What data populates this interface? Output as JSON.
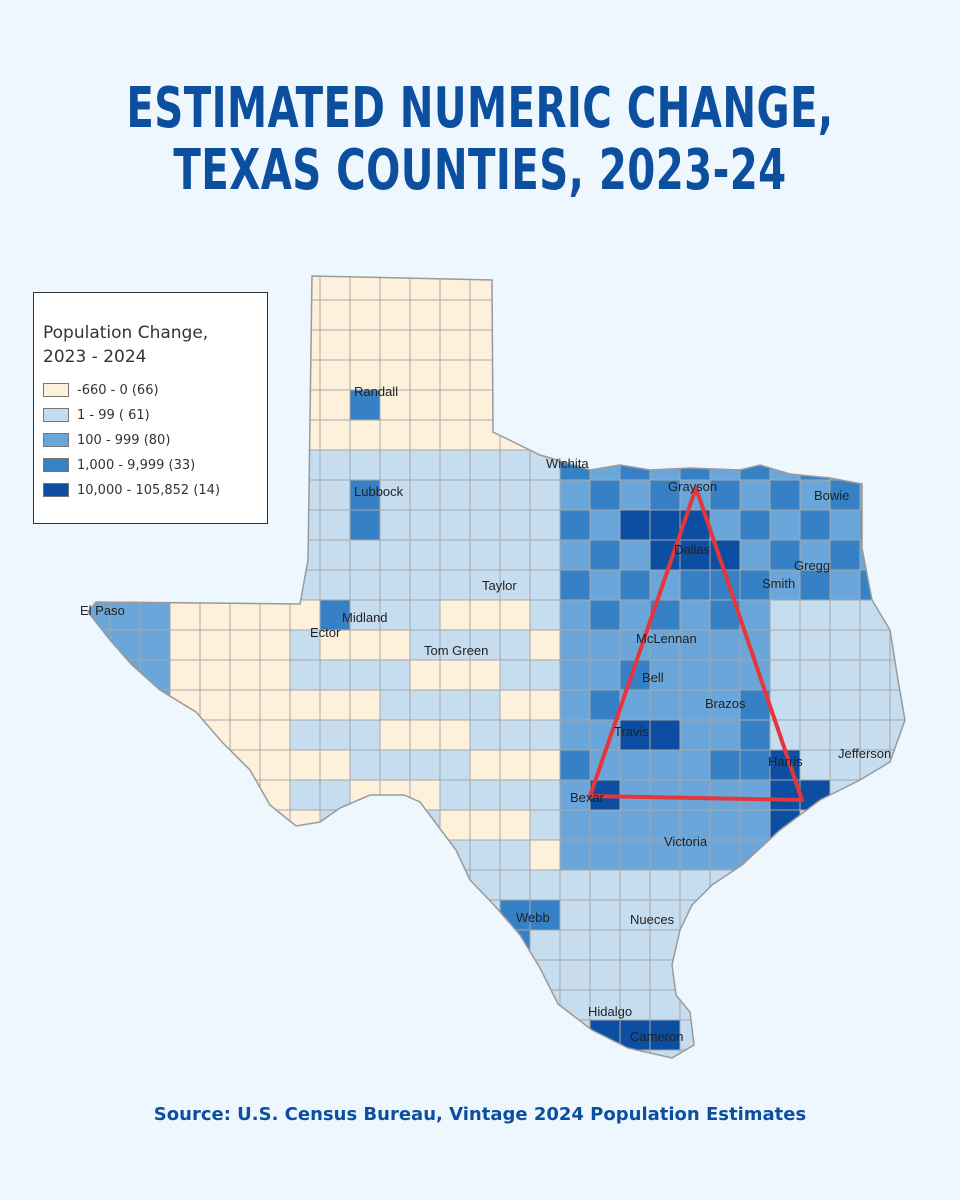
{
  "title": {
    "line1": "ESTIMATED NUMERIC CHANGE,",
    "line2": "TEXAS COUNTIES, 2023-24"
  },
  "legend": {
    "title_line1": "Population Change,",
    "title_line2": "2023 - 2024",
    "classes": [
      {
        "label": "-660 - 0 (66)",
        "color": "#fdf1dc"
      },
      {
        "label": "1 - 99 ( 61)",
        "color": "#c6dcef"
      },
      {
        "label": "100 - 999 (80)",
        "color": "#6aa6da"
      },
      {
        "label": "1,000 - 9,999 (33)",
        "color": "#3680c6"
      },
      {
        "label": "10,000 - 105,852 (14)",
        "color": "#0b4ea2"
      }
    ]
  },
  "counties": [
    "Randall",
    "Wichita",
    "Grayson",
    "Bowie",
    "Lubbock",
    "Dallas",
    "Gregg",
    "Smith",
    "Taylor",
    "El Paso",
    "Midland",
    "Ector",
    "McLennan",
    "Tom Green",
    "Bell",
    "Brazos",
    "Travis",
    "Jefferson",
    "Harris",
    "Bexar",
    "Victoria",
    "Webb",
    "Nueces",
    "Hidalgo",
    "Cameron"
  ],
  "colors": {
    "accent": "#0d4f9f",
    "triangle": "#e5363b",
    "background": "#eef7fd"
  },
  "source": "Source: U.S. Census Bureau, Vintage 2024 Population Estimates"
}
